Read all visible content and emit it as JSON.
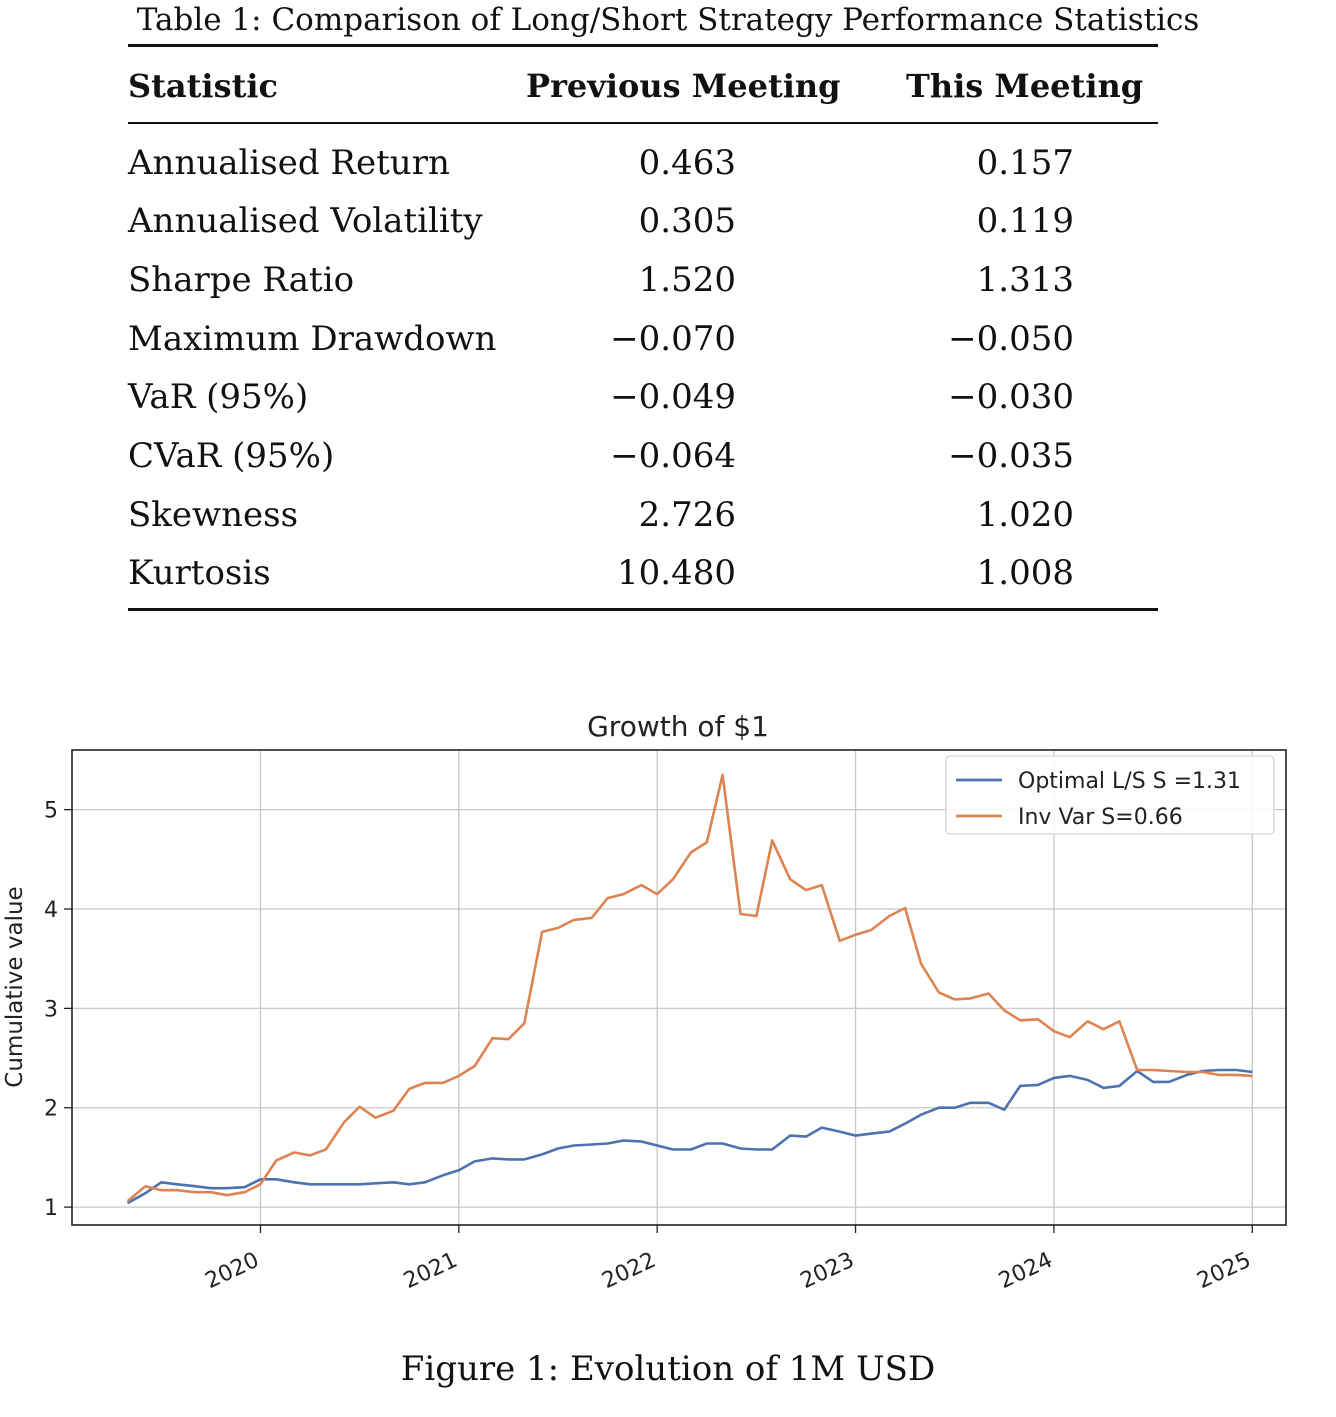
{
  "table": {
    "caption": "Table 1: Comparison of Long/Short Strategy Performance Statistics",
    "headers": [
      "Statistic",
      "Previous Meeting",
      "This Meeting"
    ],
    "rows": [
      {
        "label": "Annualised Return",
        "previous": "0.463",
        "current": "0.157"
      },
      {
        "label": "Annualised Volatility",
        "previous": "0.305",
        "current": "0.119"
      },
      {
        "label": "Sharpe Ratio",
        "previous": "1.520",
        "current": "1.313"
      },
      {
        "label": "Maximum Drawdown",
        "previous": "−0.070",
        "current": "−0.050"
      },
      {
        "label": "VaR (95%)",
        "previous": "−0.049",
        "current": "−0.030"
      },
      {
        "label": "CVaR (95%)",
        "previous": "−0.064",
        "current": "−0.035"
      },
      {
        "label": "Skewness",
        "previous": "2.726",
        "current": "1.020"
      },
      {
        "label": "Kurtosis",
        "previous": "10.480",
        "current": "1.008"
      }
    ]
  },
  "chart_data": {
    "type": "line",
    "title": "Growth of $1",
    "xlabel": "",
    "ylabel": "Cumulative value",
    "xlim": [
      2019.05,
      2025.17
    ],
    "ylim": [
      0.82,
      5.6
    ],
    "xticks": [
      2020,
      2021,
      2022,
      2023,
      2024,
      2025
    ],
    "xtick_labels": [
      "2020",
      "2021",
      "2022",
      "2023",
      "2024",
      "2025"
    ],
    "yticks": [
      1,
      2,
      3,
      4,
      5
    ],
    "ytick_labels": [
      "1",
      "2",
      "3",
      "4",
      "5"
    ],
    "grid": true,
    "legend_position": "top-right",
    "series": [
      {
        "name": "Optimal L/S S =1.31",
        "color": "#4c72b0",
        "points": [
          [
            2019.33,
            1.04
          ],
          [
            2019.42,
            1.14
          ],
          [
            2019.5,
            1.25
          ],
          [
            2019.58,
            1.23
          ],
          [
            2019.67,
            1.21
          ],
          [
            2019.75,
            1.19
          ],
          [
            2019.83,
            1.19
          ],
          [
            2019.92,
            1.2
          ],
          [
            2020.0,
            1.28
          ],
          [
            2020.08,
            1.28
          ],
          [
            2020.17,
            1.25
          ],
          [
            2020.25,
            1.23
          ],
          [
            2020.33,
            1.23
          ],
          [
            2020.42,
            1.23
          ],
          [
            2020.5,
            1.23
          ],
          [
            2020.58,
            1.24
          ],
          [
            2020.67,
            1.25
          ],
          [
            2020.75,
            1.23
          ],
          [
            2020.83,
            1.25
          ],
          [
            2020.92,
            1.32
          ],
          [
            2021.0,
            1.37
          ],
          [
            2021.08,
            1.46
          ],
          [
            2021.17,
            1.49
          ],
          [
            2021.25,
            1.48
          ],
          [
            2021.33,
            1.48
          ],
          [
            2021.42,
            1.53
          ],
          [
            2021.5,
            1.59
          ],
          [
            2021.58,
            1.62
          ],
          [
            2021.67,
            1.63
          ],
          [
            2021.75,
            1.64
          ],
          [
            2021.83,
            1.67
          ],
          [
            2021.92,
            1.66
          ],
          [
            2022.0,
            1.62
          ],
          [
            2022.08,
            1.58
          ],
          [
            2022.17,
            1.58
          ],
          [
            2022.25,
            1.64
          ],
          [
            2022.33,
            1.64
          ],
          [
            2022.42,
            1.59
          ],
          [
            2022.5,
            1.58
          ],
          [
            2022.58,
            1.58
          ],
          [
            2022.67,
            1.72
          ],
          [
            2022.75,
            1.71
          ],
          [
            2022.83,
            1.8
          ],
          [
            2022.92,
            1.76
          ],
          [
            2023.0,
            1.72
          ],
          [
            2023.08,
            1.74
          ],
          [
            2023.17,
            1.76
          ],
          [
            2023.25,
            1.84
          ],
          [
            2023.33,
            1.93
          ],
          [
            2023.42,
            2.0
          ],
          [
            2023.5,
            2.0
          ],
          [
            2023.58,
            2.05
          ],
          [
            2023.67,
            2.05
          ],
          [
            2023.75,
            1.98
          ],
          [
            2023.83,
            2.22
          ],
          [
            2023.92,
            2.23
          ],
          [
            2024.0,
            2.3
          ],
          [
            2024.08,
            2.32
          ],
          [
            2024.17,
            2.28
          ],
          [
            2024.25,
            2.2
          ],
          [
            2024.33,
            2.22
          ],
          [
            2024.42,
            2.37
          ],
          [
            2024.5,
            2.26
          ],
          [
            2024.58,
            2.26
          ],
          [
            2024.67,
            2.33
          ],
          [
            2024.75,
            2.37
          ],
          [
            2024.83,
            2.38
          ],
          [
            2024.92,
            2.38
          ],
          [
            2025.0,
            2.36
          ]
        ]
      },
      {
        "name": "Inv Var S=0.66",
        "color": "#dd8452",
        "points": [
          [
            2019.33,
            1.06
          ],
          [
            2019.42,
            1.21
          ],
          [
            2019.5,
            1.17
          ],
          [
            2019.58,
            1.17
          ],
          [
            2019.67,
            1.15
          ],
          [
            2019.75,
            1.15
          ],
          [
            2019.83,
            1.12
          ],
          [
            2019.92,
            1.15
          ],
          [
            2020.0,
            1.23
          ],
          [
            2020.08,
            1.47
          ],
          [
            2020.17,
            1.55
          ],
          [
            2020.25,
            1.52
          ],
          [
            2020.33,
            1.58
          ],
          [
            2020.42,
            1.85
          ],
          [
            2020.5,
            2.01
          ],
          [
            2020.58,
            1.9
          ],
          [
            2020.67,
            1.97
          ],
          [
            2020.75,
            2.19
          ],
          [
            2020.83,
            2.25
          ],
          [
            2020.92,
            2.25
          ],
          [
            2021.0,
            2.32
          ],
          [
            2021.08,
            2.42
          ],
          [
            2021.17,
            2.7
          ],
          [
            2021.25,
            2.69
          ],
          [
            2021.33,
            2.85
          ],
          [
            2021.42,
            3.77
          ],
          [
            2021.5,
            3.81
          ],
          [
            2021.58,
            3.89
          ],
          [
            2021.67,
            3.91
          ],
          [
            2021.75,
            4.11
          ],
          [
            2021.83,
            4.15
          ],
          [
            2021.92,
            4.24
          ],
          [
            2022.0,
            4.15
          ],
          [
            2022.08,
            4.3
          ],
          [
            2022.17,
            4.57
          ],
          [
            2022.25,
            4.67
          ],
          [
            2022.33,
            5.35
          ],
          [
            2022.42,
            3.95
          ],
          [
            2022.5,
            3.93
          ],
          [
            2022.58,
            4.69
          ],
          [
            2022.67,
            4.3
          ],
          [
            2022.75,
            4.19
          ],
          [
            2022.83,
            4.24
          ],
          [
            2022.92,
            3.68
          ],
          [
            2023.0,
            3.74
          ],
          [
            2023.08,
            3.79
          ],
          [
            2023.17,
            3.93
          ],
          [
            2023.25,
            4.01
          ],
          [
            2023.33,
            3.45
          ],
          [
            2023.42,
            3.16
          ],
          [
            2023.5,
            3.09
          ],
          [
            2023.58,
            3.1
          ],
          [
            2023.67,
            3.15
          ],
          [
            2023.75,
            2.98
          ],
          [
            2023.83,
            2.88
          ],
          [
            2023.92,
            2.89
          ],
          [
            2024.0,
            2.77
          ],
          [
            2024.08,
            2.71
          ],
          [
            2024.17,
            2.87
          ],
          [
            2024.25,
            2.79
          ],
          [
            2024.33,
            2.87
          ],
          [
            2024.42,
            2.38
          ],
          [
            2024.5,
            2.38
          ],
          [
            2024.58,
            2.37
          ],
          [
            2024.67,
            2.36
          ],
          [
            2024.75,
            2.36
          ],
          [
            2024.83,
            2.33
          ],
          [
            2024.92,
            2.33
          ],
          [
            2025.0,
            2.32
          ]
        ]
      }
    ]
  },
  "figure": {
    "caption": "Figure 1: Evolution of 1M USD"
  }
}
